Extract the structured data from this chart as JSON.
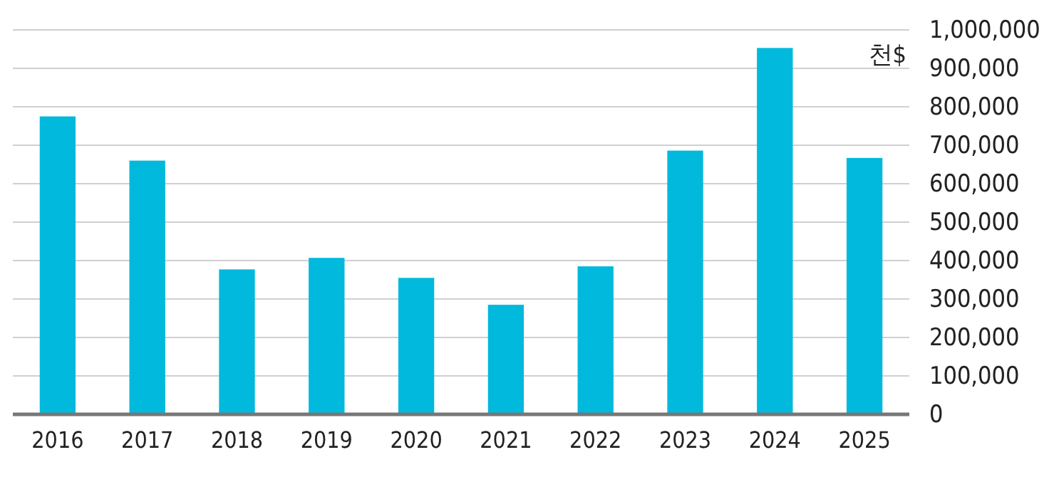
{
  "chart_data": {
    "type": "bar",
    "ylabel": "천$",
    "categories": [
      "2016",
      "2017",
      "2018",
      "2019",
      "2020",
      "2021",
      "2022",
      "2023",
      "2024",
      "2025"
    ],
    "series": [
      {
        "color": "#00b9dc",
        "values": [
          775000,
          660000,
          377000,
          407000,
          355000,
          285000,
          385000,
          686000,
          953000,
          667000
        ]
      }
    ],
    "ylim": [
      0,
      1000000
    ],
    "yticks": [
      {
        "value": 0,
        "label": "0"
      },
      {
        "value": 100000,
        "label": "100,000"
      },
      {
        "value": 200000,
        "label": "200,000"
      },
      {
        "value": 300000,
        "label": "300,000"
      },
      {
        "value": 400000,
        "label": "400,000"
      },
      {
        "value": 500000,
        "label": "500,000"
      },
      {
        "value": 600000,
        "label": "600,000"
      },
      {
        "value": 700000,
        "label": "700,000"
      },
      {
        "value": 800000,
        "label": "800,000"
      },
      {
        "value": 900000,
        "label": "900,000"
      },
      {
        "value": 1000000,
        "label": "1,000,000"
      }
    ],
    "grid": "y"
  }
}
